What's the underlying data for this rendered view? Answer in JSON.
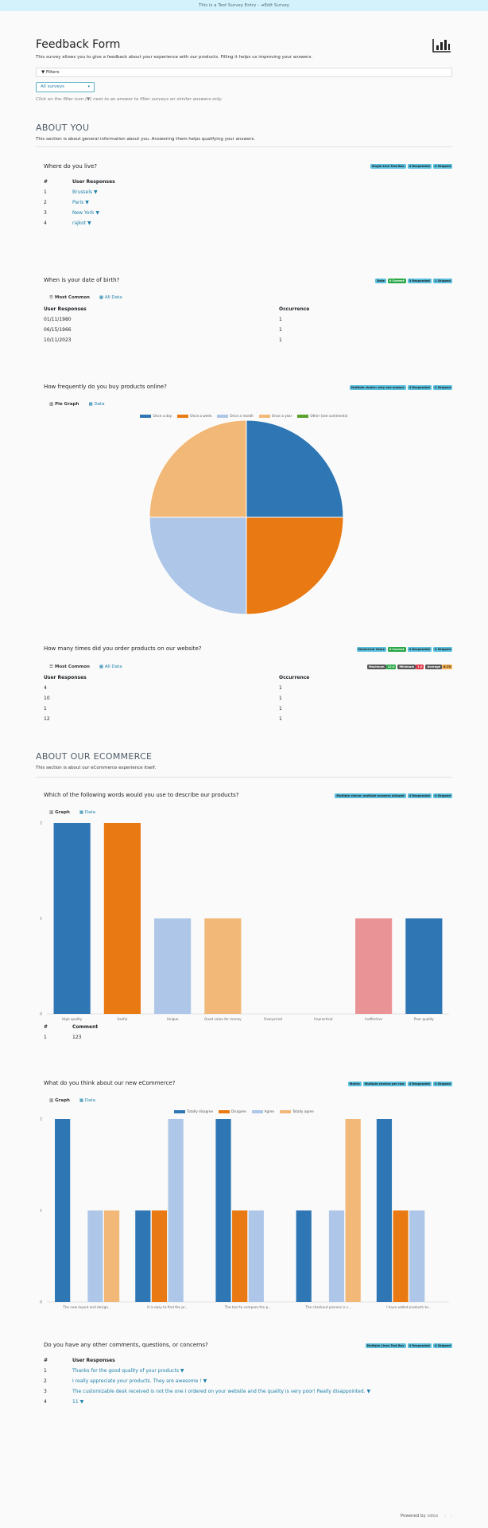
{
  "topbar": {
    "text": "This is a Test Survey Entry - ",
    "edit": "Edit Survey",
    "edit_icon": "arrow-icon"
  },
  "header": {
    "title": "Feedback Form",
    "description": "This survey allows you to give a feedback about your experience with our products. Filling it helps us improving your answers.",
    "filters_label": "Filters",
    "survey_select": "All surveys",
    "hint": "Click on the filter icon (▼) next to an answer to filter surveys on similar answers only."
  },
  "sections": [
    {
      "title": "ABOUT YOU",
      "description": "This section is about general information about you. Answering them helps qualifying your answers."
    },
    {
      "title": "ABOUT OUR ECOMMERCE",
      "description": "This section is about our eCommerce experience itself."
    }
  ],
  "q1": {
    "title": "Where do you live?",
    "badges": [
      "Single Line Text Box",
      "4 Responded",
      "0 Skipped"
    ],
    "col_num": "#",
    "col_resp": "User Responses",
    "rows": [
      [
        "1",
        "Brussels"
      ],
      [
        "2",
        "Paris"
      ],
      [
        "3",
        "New York"
      ],
      [
        "4",
        "rajkot"
      ]
    ]
  },
  "q2": {
    "title": "When is your date of birth?",
    "badges": [
      "Date",
      "0 Correct",
      "3 Responded",
      "1 Skipped"
    ],
    "tab1": "Most Common",
    "tab2": "All Data",
    "col_resp": "User Responses",
    "col_occ": "Occurrence",
    "rows": [
      [
        "01/11/1980",
        "1"
      ],
      [
        "06/15/1966",
        "1"
      ],
      [
        "10/11/2023",
        "1"
      ]
    ]
  },
  "q3": {
    "title": "How frequently do you buy products online?",
    "badges": [
      "Multiple choice: only one answer",
      "4 Responded",
      "0 Skipped"
    ],
    "tab1": "Pie Graph",
    "tab2": "Data",
    "legend": [
      "Once a day",
      "Once a week",
      "Once a month",
      "Once a year",
      "Other (see comments)"
    ]
  },
  "q4": {
    "title": "How many times did you order products on our website?",
    "badges": [
      "Numerical Value",
      "0 Correct",
      "4 Responded",
      "0 Skipped"
    ],
    "stats": [
      [
        "Maximum",
        "12.0"
      ],
      [
        "Minimum",
        "1.0"
      ],
      [
        "Average",
        "6.75"
      ]
    ],
    "tab1": "Most Common",
    "tab2": "All Data",
    "col_resp": "User Responses",
    "col_occ": "Occurrence",
    "rows": [
      [
        "4",
        "1"
      ],
      [
        "10",
        "1"
      ],
      [
        "1",
        "1"
      ],
      [
        "12",
        "1"
      ]
    ]
  },
  "q5": {
    "title": "Which of the following words would you use to describe our products?",
    "badges": [
      "Multiple choice: multiple answers allowed",
      "4 Responded",
      "0 Skipped"
    ],
    "tab1": "Graph",
    "tab2": "Data",
    "col_num": "#",
    "col_comment": "Comment",
    "rows": [
      [
        "1",
        "123"
      ]
    ]
  },
  "q6": {
    "title": "What do you think about our new eCommerce?",
    "badges": [
      "Matrix",
      "Multiple choices per row",
      "4 Responded",
      "0 Skipped"
    ],
    "tab1": "Graph",
    "tab2": "Data"
  },
  "q7": {
    "title": "Do you have any other comments, questions, or concerns?",
    "badges": [
      "Multiple Lines Text Box",
      "4 Responded",
      "0 Skipped"
    ],
    "col_num": "#",
    "col_resp": "User Responses",
    "rows": [
      [
        "1",
        "Thanks for the good quality of your products"
      ],
      [
        "2",
        "I really appreciate your products. They are awesome !"
      ],
      [
        "3",
        "The customizable desk received is not the one I ordered on your website and the quality is very poor! Really disappointed."
      ],
      [
        "4",
        "11"
      ]
    ]
  },
  "footer": {
    "powered": "Powered by",
    "brand": "odoo"
  },
  "colors": {
    "c1": "#2f77b4",
    "c2": "#e97a13",
    "c3": "#aec7e8",
    "c4": "#f2b878",
    "c5": "#5aa02c",
    "c6": "#d8432e",
    "c7": "#ea9396"
  },
  "chart_data": [
    {
      "type": "pie",
      "categories": [
        "Once a day",
        "Once a week",
        "Once a month",
        "Once a year",
        "Other (see comments)"
      ],
      "values": [
        1,
        1,
        1,
        1,
        0
      ]
    },
    {
      "type": "bar",
      "categories": [
        "High quality",
        "Useful",
        "Unique",
        "Good value for money",
        "Overpriced",
        "Impractical",
        "Ineffective",
        "Poor quality"
      ],
      "values": [
        2,
        2,
        1,
        1,
        0,
        0,
        1,
        1
      ],
      "ylim": [
        0,
        2
      ],
      "yticks": [
        "0",
        "1",
        "2"
      ]
    },
    {
      "type": "bar",
      "categories": [
        "The new layout and design...",
        "It is easy to find the pr...",
        "The tool to compare the p...",
        "The checkout process is c...",
        "I have added products to..."
      ],
      "series": [
        {
          "name": "Totally disagree",
          "values": [
            2,
            1,
            2,
            1,
            2
          ]
        },
        {
          "name": "Disagree",
          "values": [
            0,
            1,
            1,
            0,
            1
          ]
        },
        {
          "name": "Agree",
          "values": [
            1,
            2,
            1,
            1,
            1
          ]
        },
        {
          "name": "Totally agree",
          "values": [
            1,
            0,
            0,
            2,
            0
          ]
        }
      ],
      "ylim": [
        0,
        2
      ],
      "yticks": [
        "0",
        "1",
        "2"
      ]
    }
  ]
}
